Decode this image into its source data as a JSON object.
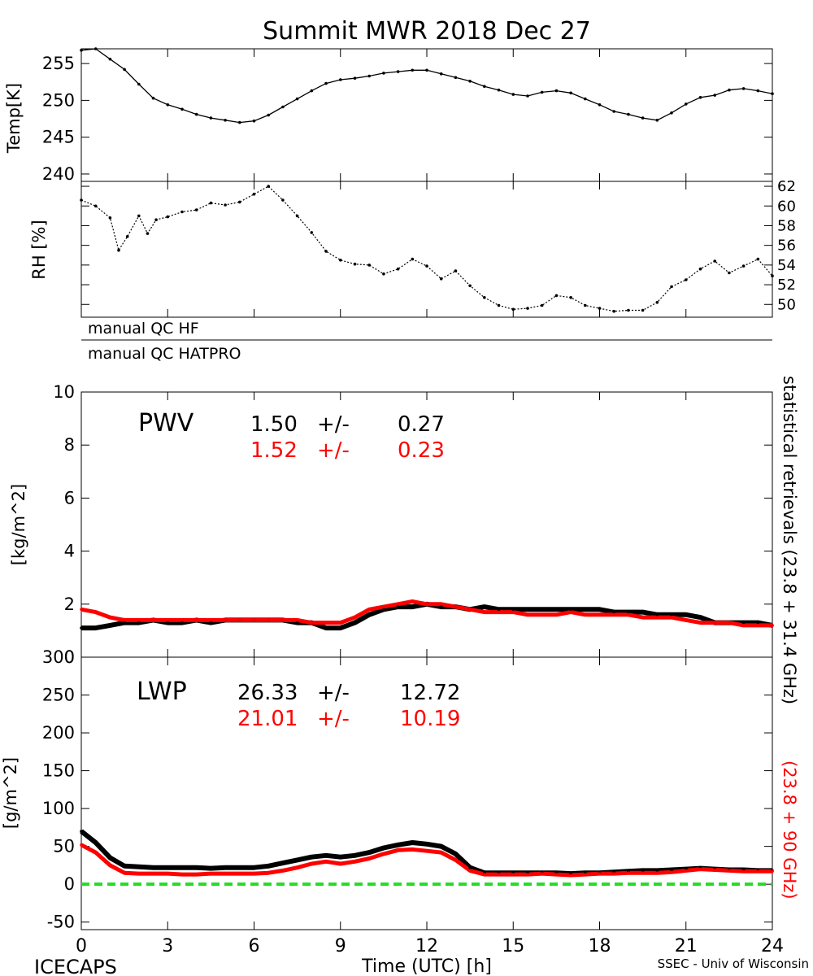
{
  "figure": {
    "title": "Summit MWR 2018 Dec 27",
    "footer_left": "ICECAPS",
    "footer_right": "SSEC - Univ of Wisconsin",
    "side_label_black": "statistical retrievals (23.8 + 31.4 GHz)",
    "side_label_red": "(23.8 + 90 GHz)",
    "qc_labels": [
      "manual QC HF",
      "manual QC HATPRO"
    ]
  },
  "colors": {
    "black_series": "#000000",
    "red_series": "#ff0000",
    "zero_line": "#22dd22"
  },
  "chart_data": [
    {
      "type": "line",
      "ylabel": "Temp[K]",
      "ylim": [
        239,
        257
      ],
      "yticks": [
        240,
        245,
        250,
        255
      ],
      "xlim": [
        0,
        24
      ],
      "series": [
        {
          "x": [
            0,
            0.5,
            1,
            1.5,
            2,
            2.5,
            3,
            3.5,
            4,
            4.5,
            5,
            5.5,
            6,
            6.5,
            7,
            7.5,
            8,
            8.5,
            9,
            9.5,
            10,
            10.5,
            11,
            11.5,
            12,
            12.5,
            13,
            13.5,
            14,
            14.5,
            15,
            15.5,
            16,
            16.5,
            17,
            17.5,
            18,
            18.5,
            19,
            19.5,
            20,
            20.5,
            21,
            21.5,
            22,
            22.5,
            23,
            23.5,
            24
          ],
          "values": [
            256.8,
            257,
            255.6,
            254.2,
            252.2,
            250.3,
            249.4,
            248.8,
            248.1,
            247.6,
            247.3,
            247.0,
            247.2,
            248.0,
            249.1,
            250.2,
            251.3,
            252.3,
            252.8,
            253.0,
            253.3,
            253.7,
            253.9,
            254.1,
            254.1,
            253.6,
            253.1,
            252.6,
            251.9,
            251.4,
            250.8,
            250.6,
            251.1,
            251.3,
            251.0,
            250.2,
            249.4,
            248.5,
            248.1,
            247.6,
            247.3,
            248.3,
            249.5,
            250.4,
            250.7,
            251.4,
            251.6,
            251.3,
            250.9
          ]
        }
      ]
    },
    {
      "type": "scatter",
      "ylabel": "RH [%]",
      "ylim": [
        48.7,
        62.5
      ],
      "yticks": [
        50,
        52,
        54,
        56,
        58,
        60,
        62
      ],
      "xlim": [
        0,
        24
      ],
      "series": [
        {
          "x": [
            0,
            0.5,
            1,
            1.3,
            1.6,
            2,
            2.3,
            2.6,
            3,
            3.5,
            4,
            4.5,
            5,
            5.5,
            6,
            6.5,
            7,
            7.5,
            8,
            8.5,
            9,
            9.5,
            10,
            10.5,
            11,
            11.5,
            12,
            12.5,
            13,
            13.5,
            14,
            14.5,
            15,
            15.5,
            16,
            16.5,
            17,
            17.5,
            18,
            18.5,
            19,
            19.5,
            20,
            20.5,
            21,
            21.5,
            22,
            22.5,
            23,
            23.5,
            24
          ],
          "values": [
            60.6,
            60.0,
            58.8,
            55.5,
            56.9,
            59.0,
            57.2,
            58.6,
            58.9,
            59.4,
            59.6,
            60.3,
            60.1,
            60.4,
            61.2,
            62.0,
            60.6,
            59.0,
            57.3,
            55.4,
            54.5,
            54.1,
            54.0,
            53.1,
            53.6,
            54.6,
            53.9,
            52.6,
            53.4,
            51.9,
            50.7,
            49.9,
            49.5,
            49.6,
            49.9,
            50.9,
            50.7,
            49.9,
            49.6,
            49.3,
            49.4,
            49.4,
            50.2,
            51.8,
            52.5,
            53.6,
            54.4,
            53.2,
            53.9,
            54.6,
            52.9
          ]
        }
      ]
    },
    {
      "type": "line",
      "ylabel": "[kg/m^2]",
      "ylim": [
        0,
        10
      ],
      "yticks": [
        0,
        2,
        4,
        6,
        8,
        10
      ],
      "xlim": [
        0,
        24
      ],
      "label": "PWV",
      "stats": [
        {
          "mean": "1.50",
          "pm": "+/-",
          "std": "0.27"
        },
        {
          "mean": "1.52",
          "pm": "+/-",
          "std": "0.23"
        }
      ],
      "series": [
        {
          "x": [
            0,
            0.5,
            1,
            1.5,
            2,
            2.5,
            3,
            3.5,
            4,
            4.5,
            5,
            5.5,
            6,
            6.5,
            7,
            7.5,
            8,
            8.5,
            9,
            9.5,
            10,
            10.5,
            11,
            11.5,
            12,
            12.5,
            13,
            13.5,
            14,
            14.5,
            15,
            15.5,
            16,
            16.5,
            17,
            17.5,
            18,
            18.5,
            19,
            19.5,
            20,
            20.5,
            21,
            21.5,
            22,
            22.5,
            23,
            23.5,
            24
          ],
          "values": [
            1.1,
            1.1,
            1.2,
            1.3,
            1.3,
            1.4,
            1.3,
            1.3,
            1.4,
            1.3,
            1.4,
            1.4,
            1.4,
            1.4,
            1.4,
            1.3,
            1.3,
            1.1,
            1.1,
            1.3,
            1.6,
            1.8,
            1.9,
            1.9,
            2.0,
            1.9,
            1.9,
            1.8,
            1.9,
            1.8,
            1.8,
            1.8,
            1.8,
            1.8,
            1.8,
            1.8,
            1.8,
            1.7,
            1.7,
            1.7,
            1.6,
            1.6,
            1.6,
            1.5,
            1.3,
            1.3,
            1.3,
            1.3,
            1.2
          ]
        },
        {
          "x": [
            0,
            0.5,
            1,
            1.5,
            2,
            2.5,
            3,
            3.5,
            4,
            4.5,
            5,
            5.5,
            6,
            6.5,
            7,
            7.5,
            8,
            8.5,
            9,
            9.5,
            10,
            10.5,
            11,
            11.5,
            12,
            12.5,
            13,
            13.5,
            14,
            14.5,
            15,
            15.5,
            16,
            16.5,
            17,
            17.5,
            18,
            18.5,
            19,
            19.5,
            20,
            20.5,
            21,
            21.5,
            22,
            22.5,
            23,
            23.5,
            24
          ],
          "values": [
            1.8,
            1.7,
            1.5,
            1.4,
            1.4,
            1.4,
            1.4,
            1.4,
            1.4,
            1.4,
            1.4,
            1.4,
            1.4,
            1.4,
            1.4,
            1.4,
            1.3,
            1.3,
            1.3,
            1.5,
            1.8,
            1.9,
            2.0,
            2.1,
            2.0,
            2.0,
            1.9,
            1.8,
            1.7,
            1.7,
            1.7,
            1.6,
            1.6,
            1.6,
            1.7,
            1.6,
            1.6,
            1.6,
            1.6,
            1.5,
            1.5,
            1.5,
            1.4,
            1.3,
            1.3,
            1.3,
            1.2,
            1.2,
            1.2
          ]
        }
      ]
    },
    {
      "type": "line",
      "ylabel": "[g/m^2]",
      "ylim": [
        -60,
        300
      ],
      "yticks": [
        -50,
        0,
        50,
        100,
        150,
        200,
        250,
        300
      ],
      "xlim": [
        0,
        24
      ],
      "xticks": [
        0,
        3,
        6,
        9,
        12,
        15,
        18,
        21,
        24
      ],
      "xlabel": "Time (UTC) [h]",
      "label": "LWP",
      "zero_line": 0,
      "stats": [
        {
          "mean": "26.33",
          "pm": "+/-",
          "std": "12.72"
        },
        {
          "mean": "21.01",
          "pm": "+/-",
          "std": "10.19"
        }
      ],
      "series": [
        {
          "x": [
            0,
            0.5,
            1,
            1.5,
            2,
            2.5,
            3,
            3.5,
            4,
            4.5,
            5,
            5.5,
            6,
            6.5,
            7,
            7.5,
            8,
            8.5,
            9,
            9.5,
            10,
            10.5,
            11,
            11.5,
            12,
            12.5,
            13,
            13.5,
            14,
            14.5,
            15,
            15.5,
            16,
            16.5,
            17,
            17.5,
            18,
            18.5,
            19,
            19.5,
            20,
            20.5,
            21,
            21.5,
            22,
            22.5,
            23,
            23.5,
            24
          ],
          "values": [
            70,
            55,
            35,
            24,
            23,
            22,
            22,
            22,
            22,
            21,
            22,
            22,
            22,
            24,
            28,
            32,
            36,
            38,
            36,
            38,
            42,
            48,
            52,
            55,
            53,
            50,
            40,
            22,
            15,
            15,
            15,
            15,
            15,
            15,
            14,
            15,
            15,
            16,
            17,
            18,
            18,
            19,
            20,
            21,
            20,
            19,
            19,
            18,
            18
          ]
        },
        {
          "x": [
            0,
            0.5,
            1,
            1.5,
            2,
            2.5,
            3,
            3.5,
            4,
            4.5,
            5,
            5.5,
            6,
            6.5,
            7,
            7.5,
            8,
            8.5,
            9,
            9.5,
            10,
            10.5,
            11,
            11.5,
            12,
            12.5,
            13,
            13.5,
            14,
            14.5,
            15,
            15.5,
            16,
            16.5,
            17,
            17.5,
            18,
            18.5,
            19,
            19.5,
            20,
            20.5,
            21,
            21.5,
            22,
            22.5,
            23,
            23.5,
            24
          ],
          "values": [
            52,
            42,
            25,
            15,
            14,
            14,
            14,
            13,
            13,
            14,
            14,
            14,
            14,
            15,
            18,
            22,
            27,
            30,
            27,
            30,
            34,
            40,
            45,
            46,
            44,
            42,
            32,
            18,
            13,
            13,
            13,
            13,
            14,
            13,
            12,
            13,
            14,
            14,
            15,
            15,
            15,
            16,
            18,
            20,
            19,
            18,
            17,
            17,
            17
          ]
        }
      ]
    }
  ]
}
